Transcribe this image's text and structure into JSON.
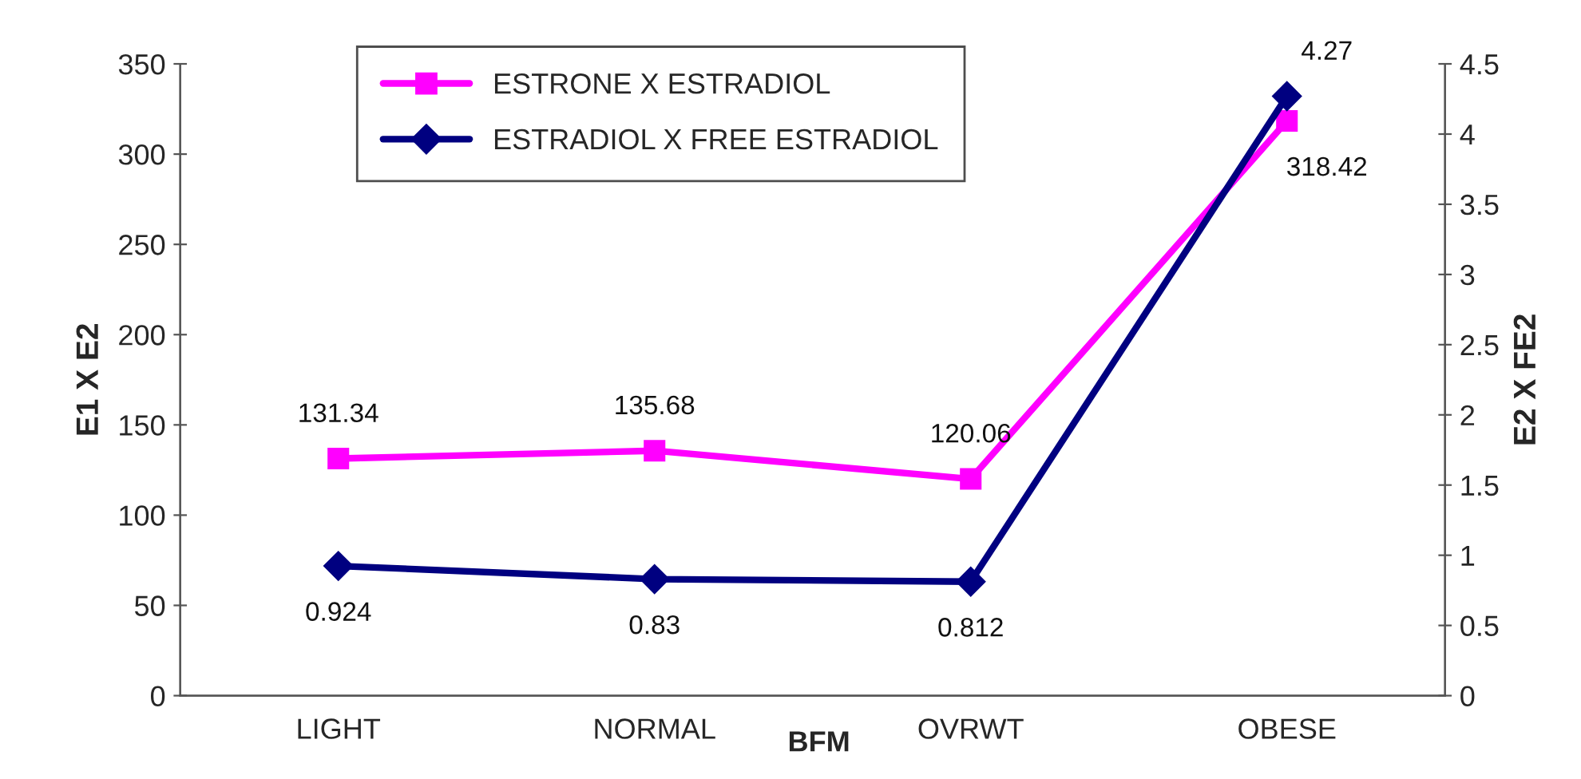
{
  "chart_data": {
    "type": "line",
    "xlabel": "BFM",
    "ylabel": "E1 X E2",
    "y2label": "E2 X FE2",
    "categories": [
      "LIGHT",
      "NORMAL",
      "OVRWT",
      "OBESE"
    ],
    "series": [
      {
        "name": "ESTRONE X ESTRADIOL",
        "color": "#ff00ff",
        "marker": "square",
        "values": [
          131.34,
          135.68,
          120.06,
          318.42
        ]
      },
      {
        "name": "ESTRADIOL X FREE ESTRADIOL",
        "color": "#000080",
        "marker": "diamond",
        "axis": "y2",
        "values": [
          0.924,
          0.83,
          0.812,
          4.27
        ]
      }
    ],
    "ylim": [
      0,
      350
    ],
    "yticks": [
      0,
      50,
      100,
      150,
      200,
      250,
      300,
      350
    ],
    "y2lim": [
      0,
      4.5
    ],
    "y2ticks": [
      0,
      0.5,
      1,
      1.5,
      2,
      2.5,
      3,
      3.5,
      4,
      4.5
    ],
    "data_labels": true,
    "legend": "top",
    "grid": false,
    "line_style": "solid"
  }
}
